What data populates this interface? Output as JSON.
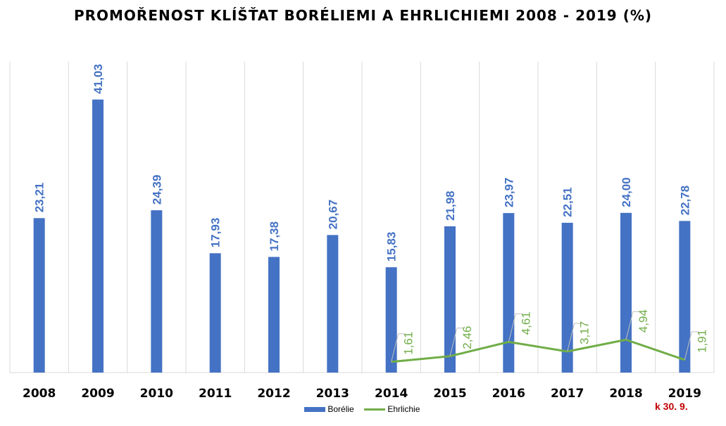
{
  "chart_data": {
    "type": "bar",
    "title": "PROMOŘENOST KLÍŠŤAT BORÉLIEMI A EHRLICHIEMI 2008 - 2019 (%)",
    "categories": [
      "2008",
      "2009",
      "2010",
      "2011",
      "2012",
      "2013",
      "2014",
      "2015",
      "2016",
      "2017",
      "2018",
      "2019"
    ],
    "series": [
      {
        "name": "Borélie",
        "type": "bar",
        "color": "#4472c4",
        "values": [
          23.21,
          41.03,
          24.39,
          17.93,
          17.38,
          20.67,
          15.83,
          21.98,
          23.97,
          22.51,
          24.0,
          22.78
        ],
        "labels": [
          "23,21",
          "41,03",
          "24,39",
          "17,93",
          "17,38",
          "20,67",
          "15,83",
          "21,98",
          "23,97",
          "22,51",
          "24,00",
          "22,78"
        ]
      },
      {
        "name": "Ehrlichie",
        "type": "line",
        "color": "#70ad47",
        "values": [
          null,
          null,
          null,
          null,
          null,
          null,
          1.61,
          2.46,
          4.61,
          3.17,
          4.94,
          1.91
        ],
        "labels": [
          null,
          null,
          null,
          null,
          null,
          null,
          "1,61",
          "2,46",
          "4,61",
          "3,17",
          "4,94",
          "1,91"
        ]
      }
    ],
    "ylim": [
      0,
      45
    ],
    "grid": "vertical",
    "legend": "bottom",
    "annotation": "k 30. 9."
  }
}
